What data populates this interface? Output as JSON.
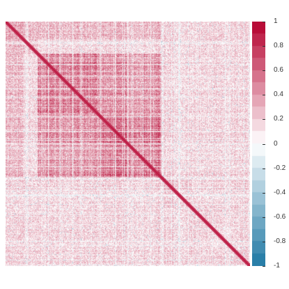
{
  "chart_data": {
    "type": "heatmap",
    "title": "",
    "xlabel": "",
    "ylabel": "",
    "value_range": [
      -1,
      1
    ],
    "colorbar": {
      "ticks": [
        {
          "value": 1,
          "label": "1"
        },
        {
          "value": 0.8,
          "label": "0.8"
        },
        {
          "value": 0.6,
          "label": "0.6"
        },
        {
          "value": 0.4,
          "label": "0.4"
        },
        {
          "value": 0.2,
          "label": "0.2"
        },
        {
          "value": 0,
          "label": "0"
        },
        {
          "value": -0.2,
          "label": "-0.2"
        },
        {
          "value": -0.4,
          "label": "-0.4"
        },
        {
          "value": -0.6,
          "label": "-0.6"
        },
        {
          "value": -0.8,
          "label": "-0.8"
        },
        {
          "value": -1,
          "label": "-1"
        }
      ],
      "colors": {
        "low": "#1f78a3",
        "mid": "#ffffff",
        "high": "#b4002d"
      }
    },
    "diagonal_value": 1,
    "blocks": [
      {
        "start": 0.0,
        "end": 0.07,
        "mean": 0.35
      },
      {
        "start": 0.07,
        "end": 0.13,
        "mean": 0.3
      },
      {
        "start": 0.13,
        "end": 0.38,
        "mean": 0.55
      },
      {
        "start": 0.38,
        "end": 0.64,
        "mean": 0.55
      },
      {
        "start": 0.64,
        "end": 0.76,
        "mean": 0.25
      },
      {
        "start": 0.76,
        "end": 0.84,
        "mean": 0.2
      },
      {
        "start": 0.84,
        "end": 0.94,
        "mean": 0.15
      },
      {
        "start": 0.94,
        "end": 1.0,
        "mean": 0.2
      }
    ]
  }
}
